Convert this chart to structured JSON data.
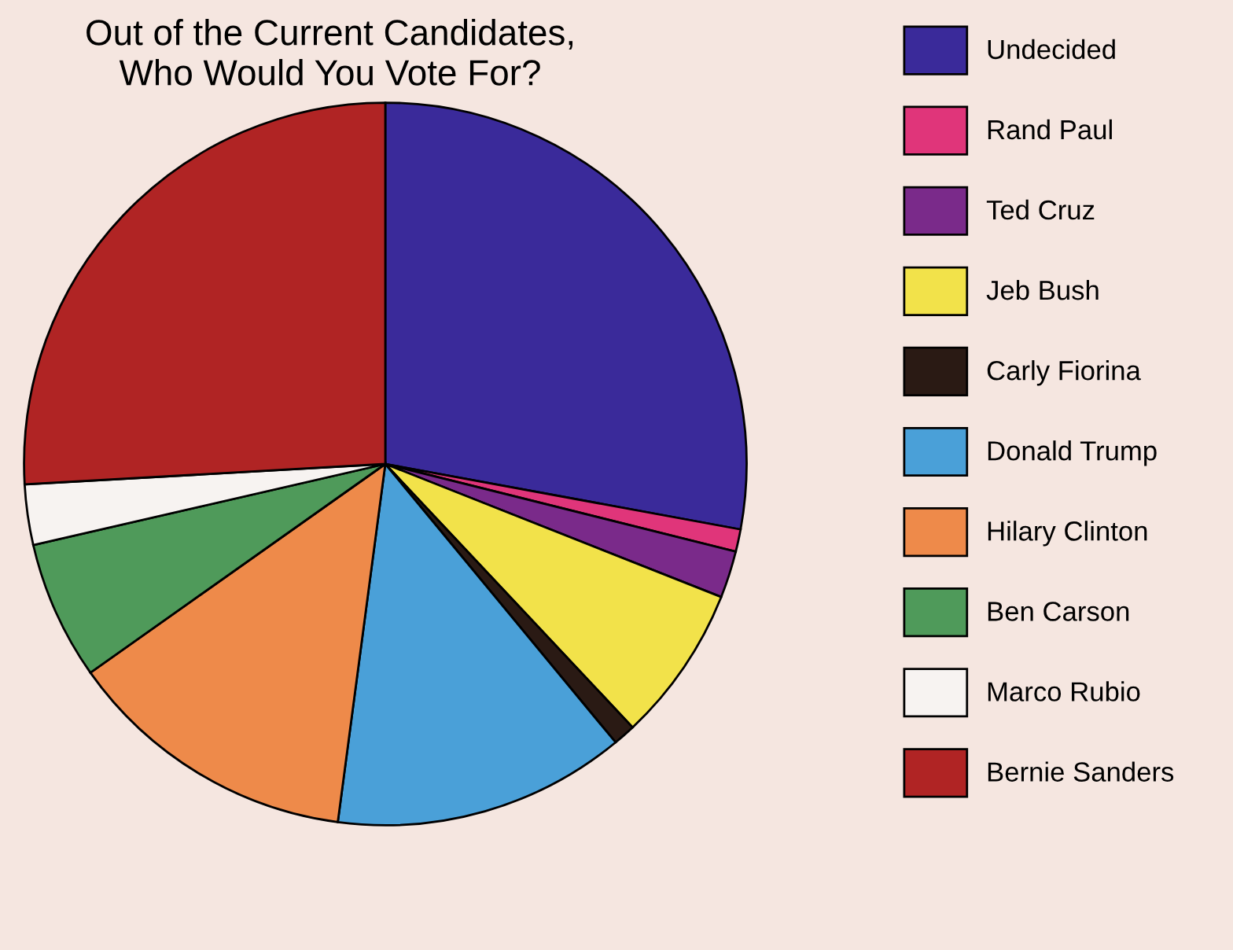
{
  "chart_data": {
    "type": "pie",
    "title": "Out of the Current Candidates,\nWho Would You Vote For?",
    "categories": [
      "Undecided",
      "Rand Paul",
      "Ted Cruz",
      "Jeb Bush",
      "Carly Fiorina",
      "Donald Trump",
      "Hilary Clinton",
      "Ben Carson",
      "Marco Rubio",
      "Bernie Sanders"
    ],
    "values": [
      27.9,
      1.0,
      2.1,
      7.0,
      1.0,
      13.1,
      13.1,
      6.2,
      2.7,
      25.9
    ],
    "colors": [
      "#3a2a9a",
      "#e0357a",
      "#7a2a8a",
      "#f2e24a",
      "#2a1a14",
      "#4aa0d8",
      "#ee8a4a",
      "#4f9a5a",
      "#f7f3f1",
      "#b02424"
    ],
    "legend": "right"
  }
}
